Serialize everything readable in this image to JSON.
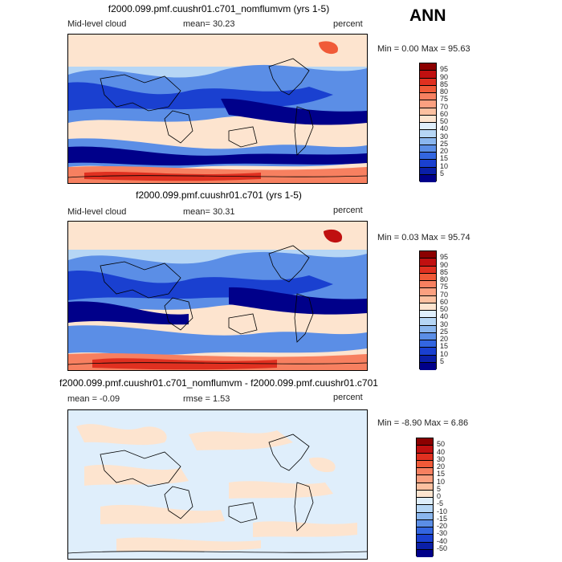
{
  "season": "ANN",
  "panels": [
    {
      "title": "f2000.099.pmf.cuushr01.c701_nomflumvm (yrs 1-5)",
      "left_label": "Mid-level cloud",
      "stat_label": "mean=  30.23",
      "units": "percent",
      "range_text": "Min =    0.00 Max =   95.63",
      "levels": [
        "95",
        "90",
        "85",
        "80",
        "75",
        "70",
        "60",
        "50",
        "40",
        "30",
        "25",
        "20",
        "15",
        "10",
        "5"
      ],
      "colors": [
        "#8c0000",
        "#c01010",
        "#e03020",
        "#f05a38",
        "#f78060",
        "#fba080",
        "#fcc0a0",
        "#fde4cf",
        "#dfeefb",
        "#b6d6f5",
        "#8ab6ee",
        "#5b8ee6",
        "#3366e0",
        "#1a40d0",
        "#0a1fa8",
        "#00008a"
      ]
    },
    {
      "title": "f2000.099.pmf.cuushr01.c701 (yrs 1-5)",
      "left_label": "Mid-level cloud",
      "stat_label": "mean=  30.31",
      "units": "percent",
      "range_text": "Min =    0.03 Max =   95.74",
      "levels": [
        "95",
        "90",
        "85",
        "80",
        "75",
        "70",
        "60",
        "50",
        "40",
        "30",
        "25",
        "20",
        "15",
        "10",
        "5"
      ],
      "colors": [
        "#8c0000",
        "#c01010",
        "#e03020",
        "#f05a38",
        "#f78060",
        "#fba080",
        "#fcc0a0",
        "#fde4cf",
        "#dfeefb",
        "#b6d6f5",
        "#8ab6ee",
        "#5b8ee6",
        "#3366e0",
        "#1a40d0",
        "#0a1fa8",
        "#00008a"
      ]
    },
    {
      "title": "f2000.099.pmf.cuushr01.c701_nomflumvm - f2000.099.pmf.cuushr01.c701",
      "left_label": "mean =   -0.09",
      "stat_label": "rmse =    1.53",
      "units": "percent",
      "range_text": "Min =  -8.90 Max =    6.86",
      "levels": [
        "50",
        "40",
        "30",
        "20",
        "15",
        "10",
        "5",
        "0",
        "-5",
        "-10",
        "-15",
        "-20",
        "-30",
        "-40",
        "-50"
      ],
      "colors": [
        "#8c0000",
        "#c01010",
        "#e03020",
        "#f05a38",
        "#f78060",
        "#fba080",
        "#fcc0a0",
        "#fde4cf",
        "#dfeefb",
        "#b6d6f5",
        "#8ab6ee",
        "#5b8ee6",
        "#3366e0",
        "#1a40d0",
        "#0a1fa8",
        "#00008a"
      ]
    }
  ],
  "chart_data": [
    {
      "type": "heatmap",
      "title": "f2000.099.pmf.cuushr01.c701_nomflumvm (yrs 1-5)",
      "variable": "Mid-level cloud",
      "units": "percent",
      "mean": 30.23,
      "min": 0.0,
      "max": 95.63,
      "contour_levels": [
        5,
        10,
        15,
        20,
        25,
        30,
        40,
        50,
        60,
        70,
        75,
        80,
        85,
        90,
        95
      ]
    },
    {
      "type": "heatmap",
      "title": "f2000.099.pmf.cuushr01.c701 (yrs 1-5)",
      "variable": "Mid-level cloud",
      "units": "percent",
      "mean": 30.31,
      "min": 0.03,
      "max": 95.74,
      "contour_levels": [
        5,
        10,
        15,
        20,
        25,
        30,
        40,
        50,
        60,
        70,
        75,
        80,
        85,
        90,
        95
      ]
    },
    {
      "type": "heatmap",
      "title": "f2000.099.pmf.cuushr01.c701_nomflumvm - f2000.099.pmf.cuushr01.c701",
      "units": "percent",
      "mean": -0.09,
      "rmse": 1.53,
      "min": -8.9,
      "max": 6.86,
      "contour_levels": [
        -50,
        -40,
        -30,
        -20,
        -15,
        -10,
        -5,
        0,
        5,
        10,
        15,
        20,
        30,
        40,
        50
      ]
    }
  ]
}
